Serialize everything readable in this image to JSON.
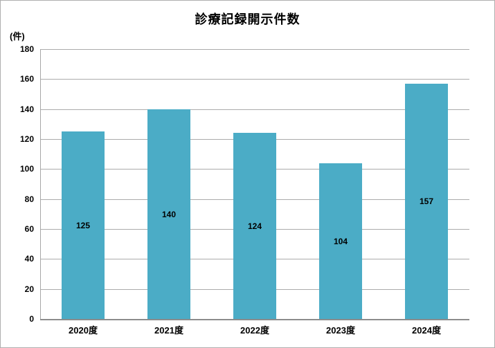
{
  "chart_data": {
    "type": "bar",
    "title": "診療記録開示件数",
    "unit_label": "(件)",
    "categories": [
      "2020度",
      "2021度",
      "2022度",
      "2023度",
      "2024度"
    ],
    "values": [
      125,
      140,
      124,
      104,
      157
    ],
    "ylim": [
      0,
      180
    ],
    "ytick_step": 20,
    "ytick_labels": [
      "0",
      "20",
      "40",
      "60",
      "80",
      "100",
      "120",
      "140",
      "160",
      "180"
    ],
    "grid": true,
    "legend": "none",
    "data_label_position": "inside-center",
    "colors": {
      "bar_fill": "#4BACC6",
      "gridline": "#ABABAB",
      "y_axis_line": "#A6A6A6",
      "x_axis_line": "#8C8C8C",
      "text": "#000000",
      "background": "#FFFFFF"
    }
  }
}
